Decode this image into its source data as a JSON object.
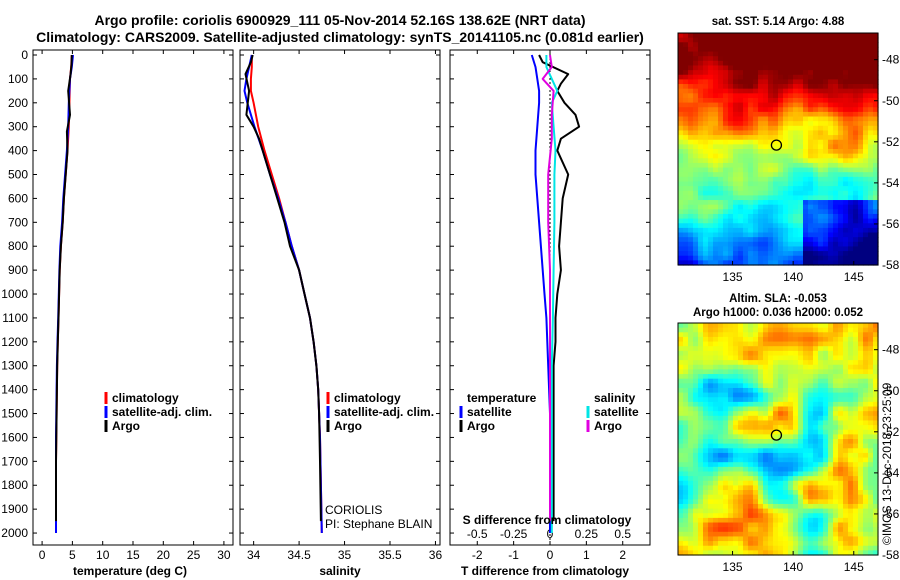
{
  "titles": {
    "line1": "Argo profile: coriolis 6900929_111 05-Nov-2014 52.16S 138.62E (NRT data)",
    "line2": "Climatology: CARS2009. Satellite-adjusted climatology: synTS_20141105.nc (0.081d earlier)"
  },
  "panel_notes": {
    "institution": "CORIOLIS",
    "pi": "PI: Stephane BLAIN"
  },
  "map_titles": {
    "sst": "sat. SST: 5.14 Argo: 4.88",
    "sla_line1": "Altim. SLA: -0.053",
    "sla_line2": "Argo h1000: 0.036 h2000: 0.052",
    "stamp": "©IMOS 13-Dec-2018 23:25:09"
  },
  "legends": {
    "climatology": "climatology",
    "satellite_adj": "satellite-adj. clim.",
    "argo": "Argo",
    "temperature": "temperature",
    "salinity": "salinity",
    "satellite": "satellite"
  },
  "colors": {
    "climatology": "#ff0000",
    "satellite": "#0000ff",
    "argo": "#000000",
    "t_satellite": "#0000ff",
    "t_argo": "#000000",
    "s_satellite": "#00e5e5",
    "s_argo": "#e000e0"
  },
  "chart_data": [
    {
      "type": "line",
      "name": "temperature",
      "xlabel": "temperature (deg C)",
      "ylabel": "",
      "xlim": [
        -1.5,
        31.5
      ],
      "ylim": [
        2050,
        0
      ],
      "xticks": [
        0,
        5,
        10,
        15,
        20,
        25,
        30
      ],
      "yticks": [
        0,
        100,
        200,
        300,
        400,
        500,
        600,
        700,
        800,
        900,
        1000,
        1100,
        1200,
        1300,
        1400,
        1500,
        1600,
        1700,
        1800,
        1900,
        2000
      ],
      "series": [
        {
          "name": "climatology",
          "x": [
            4.9,
            4.8,
            4.6,
            4.5,
            4.4,
            4.2,
            3.9,
            3.6,
            3.4,
            3.1,
            2.9,
            2.8,
            2.7,
            2.6,
            2.5,
            2.45,
            2.4,
            2.35,
            2.3,
            2.3,
            2.3
          ],
          "y": [
            0,
            50,
            100,
            200,
            300,
            400,
            500,
            600,
            700,
            800,
            900,
            1000,
            1100,
            1200,
            1300,
            1400,
            1500,
            1600,
            1700,
            1800,
            2000
          ]
        },
        {
          "name": "satellite-adj. clim.",
          "x": [
            5.1,
            4.9,
            4.6,
            4.4,
            4.3,
            4.1,
            3.8,
            3.5,
            3.3,
            3.0,
            2.85,
            2.75,
            2.65,
            2.55,
            2.45,
            2.4,
            2.35,
            2.3,
            2.3,
            2.3,
            2.3
          ],
          "y": [
            0,
            50,
            100,
            200,
            300,
            400,
            500,
            600,
            700,
            800,
            900,
            1000,
            1100,
            1200,
            1300,
            1400,
            1500,
            1600,
            1700,
            1800,
            2000
          ]
        },
        {
          "name": "Argo",
          "x": [
            4.9,
            4.85,
            4.7,
            4.3,
            4.6,
            4.1,
            4.2,
            3.9,
            3.6,
            3.4,
            3.1,
            2.9,
            2.8,
            2.7,
            2.6,
            2.5,
            2.45,
            2.4,
            2.35,
            2.3,
            2.3
          ],
          "y": [
            0,
            40,
            80,
            150,
            250,
            320,
            400,
            500,
            600,
            700,
            800,
            900,
            1000,
            1100,
            1200,
            1300,
            1400,
            1500,
            1600,
            1700,
            1950
          ]
        }
      ]
    },
    {
      "type": "line",
      "name": "salinity",
      "xlabel": "salinity",
      "ylabel": "",
      "xlim": [
        33.85,
        36.05
      ],
      "ylim": [
        2050,
        0
      ],
      "xticks": [
        34,
        34.5,
        35,
        35.5,
        36
      ],
      "xtick_labels": [
        "34",
        "34.5",
        "35",
        "35.5",
        "36"
      ],
      "series": [
        {
          "name": "climatology",
          "x": [
            33.98,
            33.98,
            33.97,
            33.97,
            34.0,
            34.05,
            34.12,
            34.2,
            34.28,
            34.35,
            34.42,
            34.5,
            34.56,
            34.62,
            34.66,
            34.69,
            34.71,
            34.72,
            34.73,
            34.74,
            34.75
          ],
          "y": [
            0,
            50,
            100,
            150,
            200,
            300,
            400,
            500,
            600,
            700,
            800,
            900,
            1000,
            1100,
            1200,
            1300,
            1400,
            1500,
            1600,
            1800,
            2000
          ]
        },
        {
          "name": "satellite-adj. clim.",
          "x": [
            33.98,
            33.95,
            33.92,
            33.9,
            33.93,
            34.01,
            34.1,
            34.18,
            34.27,
            34.35,
            34.42,
            34.5,
            34.56,
            34.62,
            34.66,
            34.69,
            34.71,
            34.72,
            34.73,
            34.74,
            34.75
          ],
          "y": [
            0,
            50,
            100,
            150,
            200,
            300,
            400,
            500,
            600,
            700,
            800,
            900,
            1000,
            1100,
            1200,
            1300,
            1400,
            1500,
            1600,
            1800,
            2000
          ]
        },
        {
          "name": "Argo",
          "x": [
            33.99,
            33.97,
            33.91,
            33.95,
            33.92,
            34.0,
            34.06,
            34.1,
            34.18,
            34.26,
            34.34,
            34.4,
            34.5,
            34.56,
            34.62,
            34.66,
            34.69,
            34.71,
            34.72,
            34.73,
            34.74
          ],
          "y": [
            0,
            30,
            80,
            150,
            250,
            300,
            350,
            400,
            500,
            600,
            700,
            800,
            900,
            1000,
            1100,
            1200,
            1300,
            1400,
            1500,
            1700,
            1950
          ]
        }
      ]
    },
    {
      "type": "line",
      "name": "difference from climatology",
      "xlabel": "T difference from climatology",
      "xlabel2": "S difference from climatology",
      "xlim": [
        -2.75,
        2.75
      ],
      "ylim": [
        2050,
        0
      ],
      "xticks": [
        -2,
        -1,
        0,
        1,
        2
      ],
      "xticks_S": [
        "-0.5",
        "-0.25",
        "0",
        "0.25",
        "0.5"
      ],
      "series": [
        {
          "name": "temperature satellite",
          "x": [
            -0.5,
            -0.4,
            -0.35,
            -0.3,
            -0.3,
            -0.35,
            -0.4,
            -0.4,
            -0.35,
            -0.3,
            -0.25,
            -0.2,
            -0.15,
            -0.1,
            -0.05,
            0,
            0
          ],
          "y": [
            0,
            50,
            100,
            150,
            200,
            300,
            400,
            500,
            600,
            700,
            800,
            900,
            1000,
            1100,
            1300,
            1500,
            2000
          ]
        },
        {
          "name": "temperature Argo",
          "x": [
            -0.3,
            -0.2,
            0.5,
            0.3,
            0.2,
            0.4,
            0.7,
            0.8,
            0.3,
            0.2,
            0.5,
            0.35,
            0.3,
            0.25,
            0.3,
            0.2,
            0.15,
            0.15,
            0.1,
            0.1,
            0.1,
            0.1,
            0.1
          ],
          "y": [
            0,
            30,
            80,
            120,
            150,
            200,
            250,
            300,
            350,
            400,
            500,
            600,
            700,
            800,
            900,
            1000,
            1100,
            1200,
            1300,
            1400,
            1600,
            1800,
            1950
          ]
        },
        {
          "name": "salinity satellite",
          "x": [
            -0.1,
            -0.1,
            0.05,
            0.2,
            0.05,
            0.1,
            0.15,
            0.12,
            0.12,
            0.1,
            0.08,
            0.05,
            0.05,
            0.05
          ],
          "y": [
            0,
            50,
            100,
            150,
            200,
            300,
            400,
            500,
            700,
            900,
            1100,
            1300,
            1600,
            2000
          ]
        },
        {
          "name": "salinity Argo",
          "x": [
            0,
            0.05,
            -0.2,
            0.1,
            0.05,
            0.05,
            -0.05,
            -0.05,
            0,
            0,
            0,
            0,
            0
          ],
          "y": [
            0,
            50,
            100,
            150,
            250,
            350,
            500,
            700,
            900,
            1100,
            1300,
            1600,
            1950
          ]
        }
      ]
    }
  ],
  "maps": [
    {
      "name": "sst",
      "type": "heatmap",
      "xticks": [
        135,
        140,
        145
      ],
      "yticks": [
        -48,
        -50,
        -52,
        -54,
        -56,
        -58
      ],
      "xlim": [
        130.5,
        147
      ],
      "ylim": [
        -58,
        -46.7
      ],
      "marker": {
        "lon": 138.62,
        "lat": -52.16
      }
    },
    {
      "name": "sla",
      "type": "heatmap",
      "xticks": [
        135,
        140,
        145
      ],
      "yticks": [
        -48,
        -50,
        -52,
        -54,
        -56,
        -58
      ],
      "xlim": [
        130.5,
        147
      ],
      "ylim": [
        -58,
        -46.7
      ],
      "marker": {
        "lon": 138.62,
        "lat": -52.16
      }
    }
  ]
}
